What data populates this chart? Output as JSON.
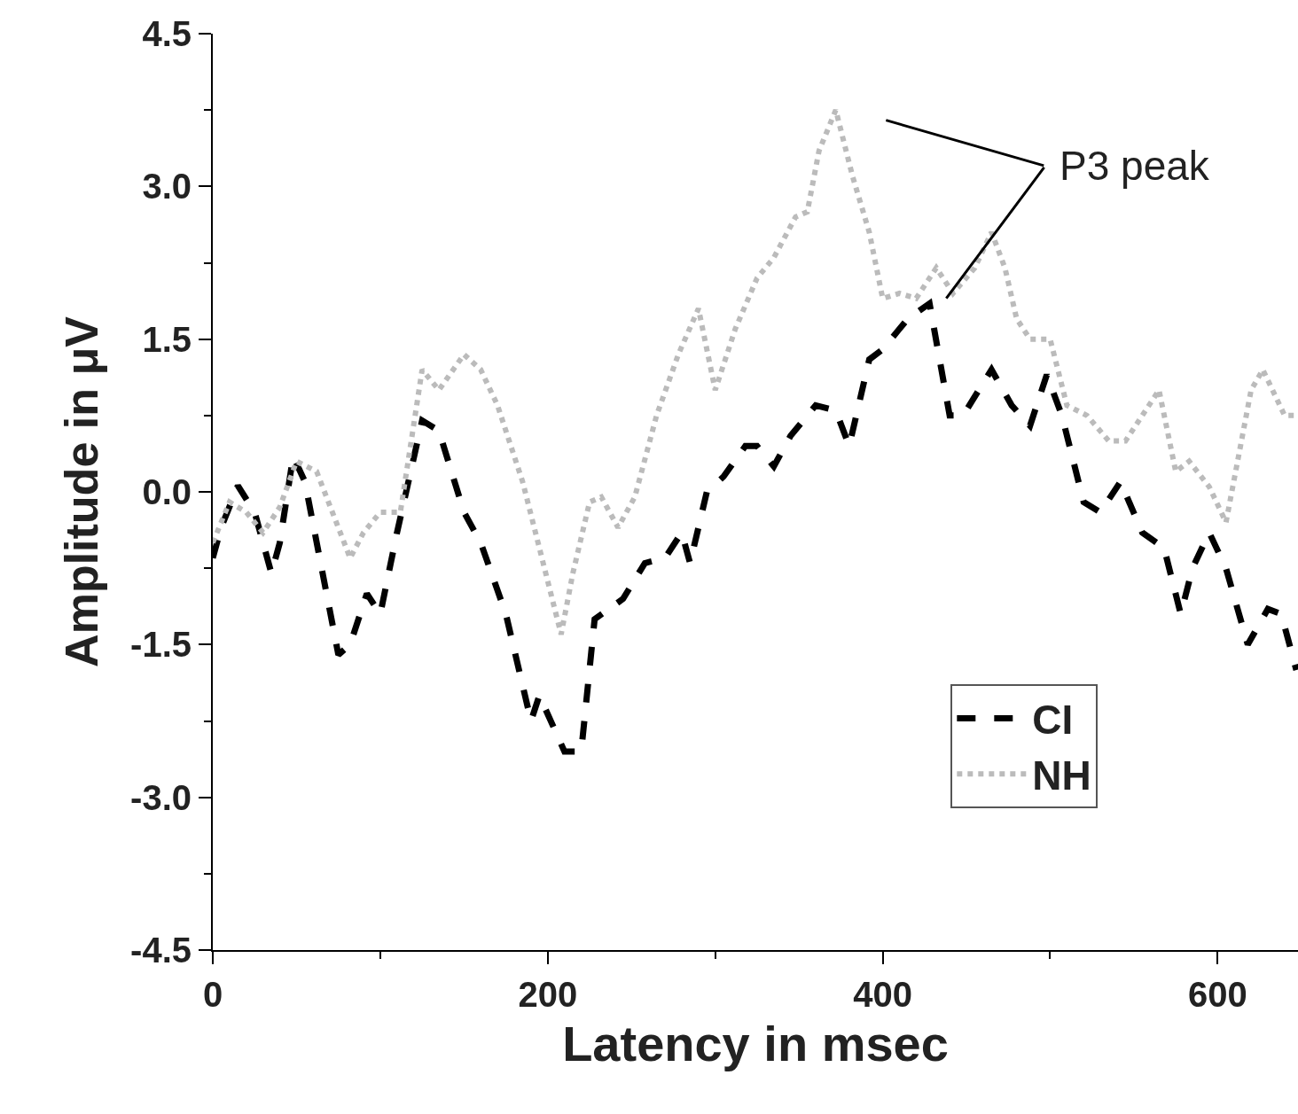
{
  "chart_data": {
    "type": "line",
    "xlabel": "Latency in msec",
    "ylabel": "Amplitude in μV",
    "xlim": [
      0,
      648
    ],
    "xticks": [
      0,
      200,
      400,
      600
    ],
    "ylim": [
      -4.5,
      4.5
    ],
    "yticks": [
      {
        "value": -4.5,
        "label": "-4.5"
      },
      {
        "value": -3,
        "label": "-3.0"
      },
      {
        "value": -1.5,
        "label": "-1.5"
      },
      {
        "value": 0,
        "label": "0.0"
      },
      {
        "value": 1.5,
        "label": "1.5"
      },
      {
        "value": 3,
        "label": "3.0"
      },
      {
        "value": 4.5,
        "label": "4.5"
      }
    ],
    "legend": "bottom right",
    "marker": "none",
    "annotations": [
      "P3 peak"
    ],
    "series": [
      {
        "name": "CI",
        "color": "#000000",
        "line_style": "dashed",
        "x": [
          0,
          5,
          15,
          25,
          35,
          40,
          48,
          55,
          65,
          75,
          82,
          92,
          100,
          110,
          125,
          135,
          150,
          160,
          175,
          190,
          195,
          210,
          220,
          228,
          245,
          258,
          270,
          280,
          285,
          295,
          305,
          318,
          325,
          335,
          345,
          360,
          372,
          380,
          392,
          400,
          415,
          428,
          440,
          448,
          465,
          477,
          488,
          498,
          507,
          520,
          530,
          542,
          555,
          568,
          578,
          585,
          595,
          605,
          618,
          630,
          638,
          647
        ],
        "values": [
          -0.65,
          -0.35,
          0.06,
          -0.2,
          -0.8,
          -0.5,
          0.35,
          0.1,
          -0.75,
          -1.6,
          -1.5,
          -1.0,
          -1.2,
          -0.4,
          0.7,
          0.6,
          -0.2,
          -0.5,
          -1.2,
          -2.25,
          -2.0,
          -2.55,
          -2.55,
          -1.25,
          -1.05,
          -0.7,
          -0.65,
          -0.4,
          -0.7,
          0.0,
          0.15,
          0.45,
          0.45,
          0.25,
          0.55,
          0.85,
          0.8,
          0.45,
          1.3,
          1.4,
          1.7,
          1.85,
          0.75,
          0.75,
          1.2,
          0.85,
          0.65,
          1.15,
          0.75,
          -0.1,
          -0.2,
          0.1,
          -0.4,
          -0.55,
          -1.2,
          -0.75,
          -0.4,
          -0.75,
          -1.5,
          -1.15,
          -1.2,
          -1.75
        ]
      },
      {
        "name": "NH",
        "color": "#bbbbbb",
        "line_style": "dotted",
        "x": [
          0,
          10,
          20,
          30,
          40,
          50,
          62,
          82,
          90,
          100,
          112,
          125,
          135,
          150,
          160,
          170,
          185,
          195,
          208,
          215,
          225,
          232,
          242,
          252,
          265,
          278,
          290,
          300,
          312,
          325,
          335,
          348,
          355,
          362,
          372,
          382,
          392,
          400,
          410,
          420,
          432,
          442,
          455,
          465,
          473,
          480,
          488,
          500,
          510,
          522,
          535,
          545,
          555,
          565,
          575,
          583,
          595,
          605,
          620,
          627,
          640,
          647
        ],
        "values": [
          -0.5,
          -0.1,
          -0.2,
          -0.4,
          -0.15,
          0.3,
          0.2,
          -0.65,
          -0.4,
          -0.2,
          -0.2,
          1.2,
          1.0,
          1.35,
          1.2,
          0.85,
          0.1,
          -0.55,
          -1.4,
          -0.8,
          -0.1,
          -0.05,
          -0.35,
          -0.05,
          0.75,
          1.35,
          1.8,
          1.0,
          1.6,
          2.1,
          2.3,
          2.7,
          2.75,
          3.35,
          3.75,
          3.1,
          2.55,
          1.9,
          1.95,
          1.9,
          2.2,
          1.95,
          2.2,
          2.55,
          2.2,
          1.7,
          1.5,
          1.5,
          0.85,
          0.75,
          0.5,
          0.5,
          0.75,
          1.0,
          0.2,
          0.3,
          0.05,
          -0.3,
          1.0,
          1.2,
          0.75,
          0.75
        ]
      }
    ]
  }
}
